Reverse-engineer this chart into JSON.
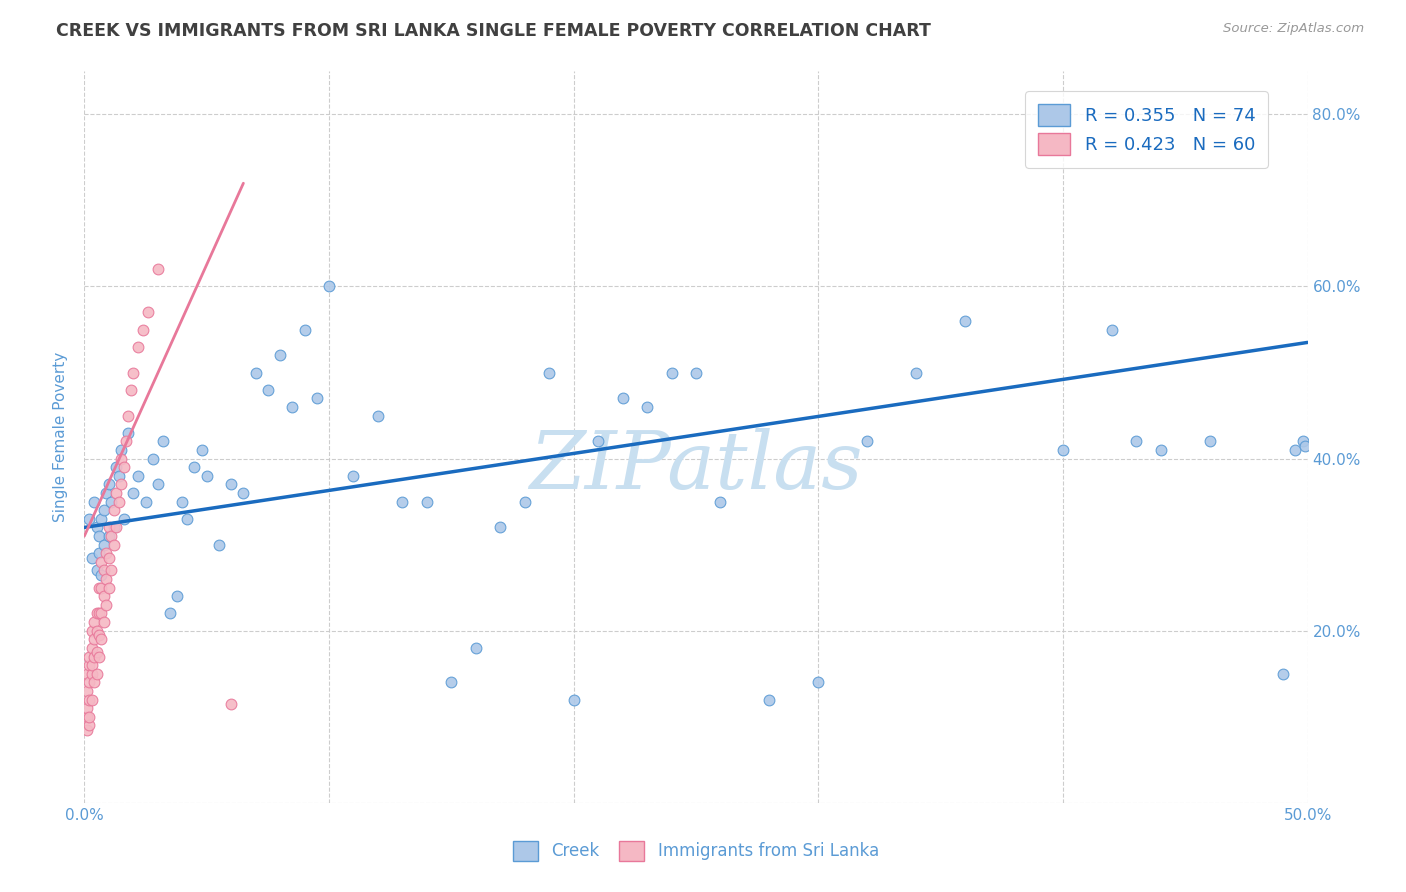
{
  "title": "CREEK VS IMMIGRANTS FROM SRI LANKA SINGLE FEMALE POVERTY CORRELATION CHART",
  "source": "Source: ZipAtlas.com",
  "ylabel": "Single Female Poverty",
  "xaxis_label_creek": "Creek",
  "xaxis_label_srilanka": "Immigrants from Sri Lanka",
  "xlim": [
    0.0,
    0.5
  ],
  "ylim": [
    0.0,
    0.85
  ],
  "xticks": [
    0.0,
    0.1,
    0.2,
    0.3,
    0.4,
    0.5
  ],
  "xtick_labels": [
    "0.0%",
    "",
    "",
    "",
    "",
    "50.0%"
  ],
  "yticks": [
    0.0,
    0.2,
    0.4,
    0.6,
    0.8
  ],
  "ytick_labels_right": [
    "",
    "20.0%",
    "40.0%",
    "60.0%",
    "80.0%"
  ],
  "legend_r1": "R = 0.355",
  "legend_n1": "N = 74",
  "legend_r2": "R = 0.423",
  "legend_n2": "N = 60",
  "color_creek_fill": "#adc8e8",
  "color_creek_edge": "#5b9bd5",
  "color_srilanka_fill": "#f5b8c4",
  "color_srilanka_edge": "#e8789a",
  "color_creek_trend": "#1a6bbf",
  "color_srilanka_trend": "#e8789a",
  "color_axis_text": "#5b9bd5",
  "color_title": "#404040",
  "color_source": "#999999",
  "color_watermark": "#c8dff0",
  "color_grid": "#c8c8c8",
  "creek_x": [
    0.002,
    0.003,
    0.004,
    0.005,
    0.005,
    0.006,
    0.006,
    0.007,
    0.007,
    0.008,
    0.008,
    0.009,
    0.01,
    0.01,
    0.011,
    0.012,
    0.013,
    0.014,
    0.015,
    0.016,
    0.018,
    0.02,
    0.022,
    0.025,
    0.028,
    0.03,
    0.032,
    0.035,
    0.038,
    0.04,
    0.042,
    0.045,
    0.048,
    0.05,
    0.055,
    0.06,
    0.065,
    0.07,
    0.075,
    0.08,
    0.085,
    0.09,
    0.095,
    0.1,
    0.11,
    0.12,
    0.13,
    0.14,
    0.15,
    0.16,
    0.17,
    0.18,
    0.19,
    0.2,
    0.21,
    0.22,
    0.23,
    0.24,
    0.25,
    0.26,
    0.28,
    0.3,
    0.32,
    0.34,
    0.36,
    0.4,
    0.42,
    0.43,
    0.44,
    0.46,
    0.49,
    0.495,
    0.498,
    0.499
  ],
  "creek_y": [
    0.33,
    0.285,
    0.35,
    0.27,
    0.32,
    0.29,
    0.31,
    0.265,
    0.33,
    0.34,
    0.3,
    0.36,
    0.31,
    0.37,
    0.35,
    0.32,
    0.39,
    0.38,
    0.41,
    0.33,
    0.43,
    0.36,
    0.38,
    0.35,
    0.4,
    0.37,
    0.42,
    0.22,
    0.24,
    0.35,
    0.33,
    0.39,
    0.41,
    0.38,
    0.3,
    0.37,
    0.36,
    0.5,
    0.48,
    0.52,
    0.46,
    0.55,
    0.47,
    0.6,
    0.38,
    0.45,
    0.35,
    0.35,
    0.14,
    0.18,
    0.32,
    0.35,
    0.5,
    0.12,
    0.42,
    0.47,
    0.46,
    0.5,
    0.5,
    0.35,
    0.12,
    0.14,
    0.42,
    0.5,
    0.56,
    0.41,
    0.55,
    0.42,
    0.41,
    0.42,
    0.15,
    0.41,
    0.42,
    0.415
  ],
  "srilanka_x": [
    0.001,
    0.001,
    0.001,
    0.001,
    0.001,
    0.002,
    0.002,
    0.002,
    0.002,
    0.002,
    0.002,
    0.003,
    0.003,
    0.003,
    0.003,
    0.003,
    0.004,
    0.004,
    0.004,
    0.004,
    0.005,
    0.005,
    0.005,
    0.005,
    0.006,
    0.006,
    0.006,
    0.006,
    0.007,
    0.007,
    0.007,
    0.007,
    0.008,
    0.008,
    0.008,
    0.009,
    0.009,
    0.009,
    0.01,
    0.01,
    0.01,
    0.011,
    0.011,
    0.012,
    0.012,
    0.013,
    0.013,
    0.014,
    0.015,
    0.015,
    0.016,
    0.017,
    0.018,
    0.019,
    0.02,
    0.022,
    0.024,
    0.026,
    0.03,
    0.06
  ],
  "srilanka_y": [
    0.085,
    0.1,
    0.11,
    0.13,
    0.15,
    0.12,
    0.14,
    0.16,
    0.09,
    0.1,
    0.17,
    0.12,
    0.15,
    0.16,
    0.18,
    0.2,
    0.14,
    0.17,
    0.19,
    0.21,
    0.15,
    0.175,
    0.2,
    0.22,
    0.17,
    0.195,
    0.22,
    0.25,
    0.19,
    0.22,
    0.25,
    0.28,
    0.21,
    0.24,
    0.27,
    0.23,
    0.26,
    0.29,
    0.25,
    0.285,
    0.32,
    0.27,
    0.31,
    0.3,
    0.34,
    0.32,
    0.36,
    0.35,
    0.37,
    0.4,
    0.39,
    0.42,
    0.45,
    0.48,
    0.5,
    0.53,
    0.55,
    0.57,
    0.62,
    0.115
  ],
  "creek_trend_x": [
    0.0,
    0.5
  ],
  "creek_trend_y": [
    0.32,
    0.535
  ],
  "srilanka_trend_x": [
    0.0,
    0.065
  ],
  "srilanka_trend_y": [
    0.31,
    0.72
  ],
  "figsize": [
    14.06,
    8.92
  ],
  "dpi": 100
}
